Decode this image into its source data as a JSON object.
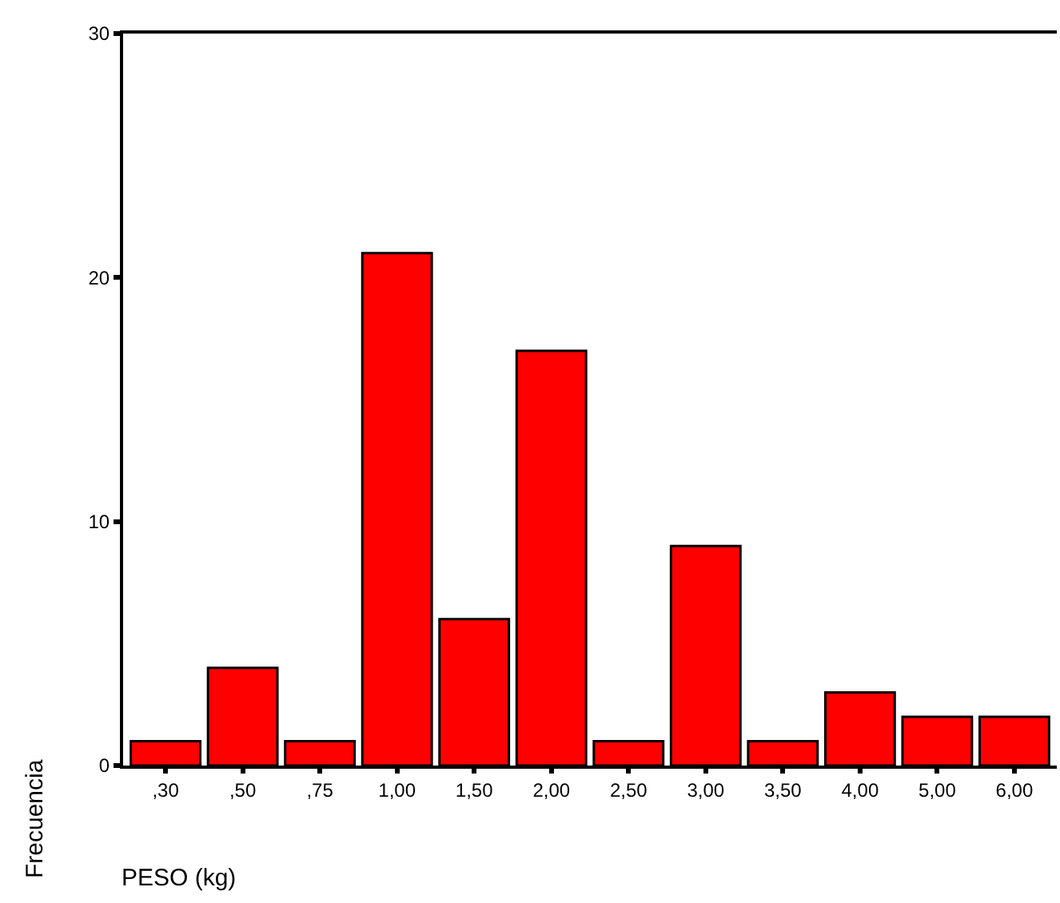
{
  "chart_data": {
    "type": "bar",
    "xlabel": "PESO (kg)",
    "ylabel": "Frecuencia",
    "categories": [
      ",30",
      ",50",
      ",75",
      "1,00",
      "1,50",
      "2,00",
      "2,50",
      "3,00",
      "3,50",
      "4,00",
      "5,00",
      "6,00"
    ],
    "values": [
      1,
      4,
      1,
      21,
      6,
      17,
      1,
      9,
      1,
      3,
      2,
      2
    ],
    "color": "#ff0000",
    "ylim": [
      0,
      30
    ],
    "yticks": [
      0,
      10,
      20,
      30
    ],
    "grid": false
  }
}
